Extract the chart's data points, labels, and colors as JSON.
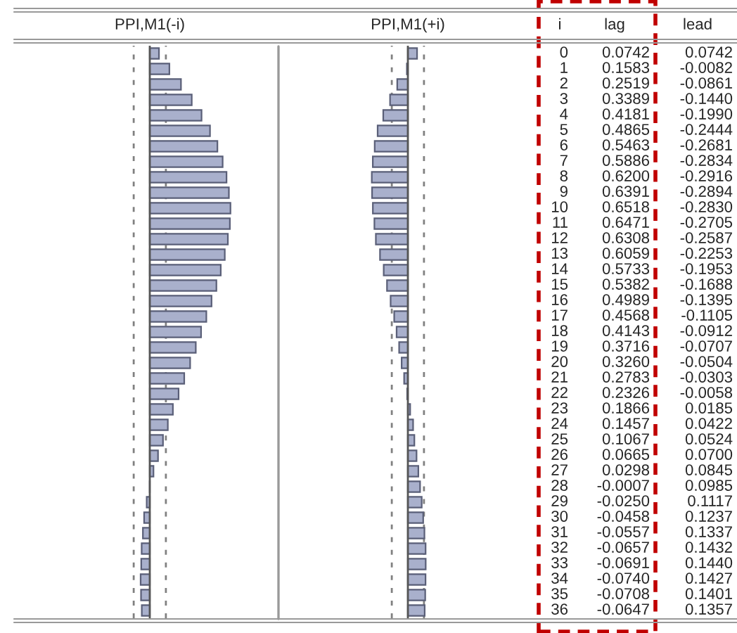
{
  "chart_data": [
    {
      "type": "bar",
      "orientation": "horizontal",
      "title": "PPI,M1(-i)",
      "ylabel": "i",
      "categories": [
        "0",
        "1",
        "2",
        "3",
        "4",
        "5",
        "6",
        "7",
        "8",
        "9",
        "10",
        "11",
        "12",
        "13",
        "14",
        "15",
        "16",
        "17",
        "18",
        "19",
        "20",
        "21",
        "22",
        "23",
        "24",
        "25",
        "26",
        "27",
        "28",
        "29",
        "30",
        "31",
        "32",
        "33",
        "34",
        "35",
        "36"
      ],
      "series": [
        {
          "name": "lag",
          "color": "#a9b0cc",
          "values": [
            0.0742,
            0.1583,
            0.2519,
            0.3389,
            0.4181,
            0.4865,
            0.5463,
            0.5886,
            0.62,
            0.6391,
            0.6518,
            0.6471,
            0.6308,
            0.6059,
            0.5733,
            0.5382,
            0.4989,
            0.4568,
            0.4143,
            0.3716,
            0.326,
            0.2783,
            0.2326,
            0.1866,
            0.1457,
            0.1067,
            0.0665,
            0.0298,
            -0.0007,
            -0.025,
            -0.0458,
            -0.0557,
            -0.0657,
            -0.0691,
            -0.074,
            -0.0708,
            -0.0647
          ],
          "value_labels": [
            "0.0742",
            "0.1583",
            "0.2519",
            "0.3389",
            "0.4181",
            "0.4865",
            "0.5463",
            "0.5886",
            "0.6200",
            "0.6391",
            "0.6518",
            "0.6471",
            "0.6308",
            "0.6059",
            "0.5733",
            "0.5382",
            "0.4989",
            "0.4568",
            "0.4143",
            "0.3716",
            "0.3260",
            "0.2783",
            "0.2326",
            "0.1866",
            "0.1457",
            "0.1067",
            "0.0665",
            "0.0298",
            "-0.0007",
            "-0.0250",
            "-0.0458",
            "-0.0557",
            "-0.0657",
            "-0.0691",
            "-0.0740",
            "-0.0708",
            "-0.0647"
          ]
        }
      ],
      "ref_lines": [
        {
          "axis": "x",
          "value": -0.13,
          "color": "#808080",
          "line_style": "dashed"
        },
        {
          "axis": "x",
          "value": 0.13,
          "color": "#808080",
          "line_style": "dashed"
        }
      ]
    },
    {
      "type": "bar",
      "orientation": "horizontal",
      "title": "PPI,M1(+i)",
      "categories": [
        null,
        null,
        null,
        null,
        null,
        null,
        null,
        null,
        null,
        null,
        null,
        null,
        null,
        null,
        null,
        null,
        null,
        null,
        null,
        null,
        null,
        null,
        null,
        null,
        null,
        null,
        null,
        null,
        null,
        null,
        null,
        null,
        null,
        null,
        null,
        null,
        null
      ],
      "series": [
        {
          "name": "lead",
          "color": "#a9b0cc",
          "values": [
            0.0742,
            -0.0082,
            -0.0861,
            -0.144,
            -0.199,
            -0.2444,
            -0.2681,
            -0.2834,
            -0.2916,
            -0.2894,
            -0.283,
            -0.2705,
            -0.2587,
            -0.2253,
            -0.1953,
            -0.1688,
            -0.1395,
            -0.1105,
            -0.0912,
            -0.0707,
            -0.0504,
            -0.0303,
            -0.0058,
            0.0185,
            0.0422,
            0.0524,
            0.07,
            0.0845,
            0.0985,
            0.1117,
            0.1237,
            0.1337,
            0.1432,
            0.144,
            0.1427,
            0.1401,
            0.1357
          ],
          "value_labels": [
            "0.0742",
            "-0.0082",
            "-0.0861",
            "-0.1440",
            "-0.1990",
            "-0.2444",
            "-0.2681",
            "-0.2834",
            "-0.2916",
            "-0.2894",
            "-0.2830",
            "-0.2705",
            "-0.2587",
            "-0.2253",
            "-0.1953",
            "-0.1688",
            "-0.1395",
            "-0.1105",
            "-0.0912",
            "-0.0707",
            "-0.0504",
            "-0.0303",
            "-0.0058",
            "0.0185",
            "0.0422",
            "0.0524",
            "0.0700",
            "0.0845",
            "0.0985",
            "0.1117",
            "0.1237",
            "0.1337",
            "0.1432",
            "0.1440",
            "0.1427",
            "0.1401",
            "0.1357"
          ]
        }
      ],
      "ref_lines": [
        {
          "axis": "x",
          "value": -0.13,
          "color": "#808080",
          "line_style": "dashed"
        },
        {
          "axis": "x",
          "value": 0.13,
          "color": "#808080",
          "line_style": "dashed"
        }
      ]
    }
  ]
}
